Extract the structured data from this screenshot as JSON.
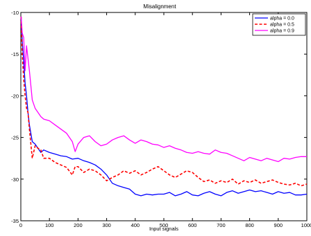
{
  "chart_data": {
    "type": "line",
    "title": "Misalignment",
    "xlabel": "Input signals",
    "ylabel": "",
    "xlim": [
      0,
      1000
    ],
    "ylim": [
      -35,
      -10
    ],
    "xticks": [
      0,
      100,
      200,
      300,
      400,
      500,
      600,
      700,
      800,
      900,
      1000
    ],
    "xtick_labels": [
      "0",
      "100",
      "200",
      "300",
      "400",
      "500",
      "600",
      "700",
      "800",
      "900",
      "1000"
    ],
    "yticks": [
      -10,
      -15,
      -20,
      -25,
      -30,
      -35
    ],
    "ytick_labels": [
      "-10",
      "-15",
      "-20",
      "-25",
      "-30",
      "-35"
    ],
    "grid": false,
    "legend_position": "top-right",
    "series": [
      {
        "name": "alpha = 0.0",
        "color": "#0000ff",
        "dash": "solid",
        "x": [
          1,
          5,
          10,
          15,
          20,
          25,
          30,
          40,
          50,
          60,
          70,
          80,
          100,
          120,
          140,
          160,
          180,
          200,
          220,
          240,
          260,
          280,
          300,
          320,
          340,
          360,
          380,
          400,
          420,
          440,
          460,
          480,
          500,
          520,
          540,
          560,
          580,
          600,
          620,
          640,
          660,
          680,
          700,
          720,
          740,
          760,
          780,
          800,
          820,
          840,
          860,
          880,
          900,
          920,
          940,
          960,
          980,
          1000
        ],
        "values": [
          -10.5,
          -13.5,
          -15.8,
          -18.5,
          -20.0,
          -22.0,
          -23.5,
          -25.5,
          -25.8,
          -26.3,
          -26.8,
          -26.5,
          -26.8,
          -27.0,
          -27.2,
          -27.3,
          -27.6,
          -27.5,
          -27.8,
          -28.0,
          -28.3,
          -28.8,
          -29.5,
          -30.5,
          -30.8,
          -31.0,
          -31.2,
          -31.8,
          -32.0,
          -31.8,
          -31.9,
          -31.8,
          -31.8,
          -31.6,
          -32.0,
          -31.8,
          -31.5,
          -31.9,
          -32.0,
          -31.7,
          -31.5,
          -31.8,
          -32.0,
          -31.6,
          -31.4,
          -31.7,
          -31.5,
          -31.3,
          -31.5,
          -31.4,
          -31.6,
          -31.8,
          -31.5,
          -31.7,
          -31.6,
          -31.9,
          -31.9,
          -31.8
        ]
      },
      {
        "name": "alpha = 0.5",
        "color": "#ff0000",
        "dash": "dashed",
        "x": [
          1,
          5,
          10,
          15,
          20,
          25,
          30,
          40,
          50,
          60,
          70,
          80,
          100,
          120,
          140,
          160,
          180,
          190,
          200,
          220,
          240,
          260,
          280,
          300,
          320,
          340,
          360,
          380,
          400,
          420,
          440,
          460,
          480,
          500,
          520,
          540,
          560,
          580,
          600,
          620,
          640,
          660,
          680,
          700,
          720,
          740,
          760,
          780,
          800,
          820,
          840,
          860,
          880,
          900,
          920,
          940,
          960,
          980,
          1000
        ],
        "values": [
          -10.5,
          -15.0,
          -18.0,
          -20.0,
          -21.5,
          -22.0,
          -24.0,
          -27.5,
          -26.0,
          -26.3,
          -26.5,
          -27.5,
          -27.5,
          -28.0,
          -28.3,
          -28.6,
          -29.5,
          -28.5,
          -28.5,
          -29.2,
          -28.8,
          -29.0,
          -29.5,
          -30.2,
          -29.8,
          -29.5,
          -29.0,
          -29.3,
          -29.0,
          -29.5,
          -29.2,
          -28.8,
          -28.5,
          -29.0,
          -29.5,
          -29.8,
          -29.4,
          -29.0,
          -29.2,
          -29.8,
          -30.3,
          -30.1,
          -30.5,
          -30.2,
          -30.4,
          -30.0,
          -30.6,
          -30.2,
          -30.4,
          -30.1,
          -30.5,
          -30.3,
          -30.1,
          -30.4,
          -30.6,
          -30.7,
          -30.5,
          -30.8,
          -30.6
        ]
      },
      {
        "name": "alpha = 0.9",
        "color": "#ff00ff",
        "dash": "solid",
        "x": [
          1,
          5,
          10,
          15,
          20,
          25,
          30,
          40,
          50,
          60,
          70,
          80,
          100,
          120,
          140,
          160,
          170,
          180,
          190,
          200,
          220,
          240,
          260,
          280,
          300,
          320,
          340,
          360,
          380,
          400,
          420,
          440,
          460,
          480,
          500,
          520,
          540,
          560,
          580,
          600,
          620,
          640,
          660,
          680,
          700,
          720,
          740,
          760,
          780,
          800,
          820,
          840,
          860,
          880,
          900,
          920,
          940,
          960,
          980,
          1000
        ],
        "values": [
          -10.5,
          -12.5,
          -13.0,
          -17.0,
          -14.0,
          -15.5,
          -17.0,
          -20.5,
          -21.5,
          -22.0,
          -22.5,
          -22.8,
          -23.0,
          -23.5,
          -24.0,
          -24.5,
          -25.0,
          -25.5,
          -26.7,
          -25.8,
          -25.0,
          -24.8,
          -25.5,
          -26.0,
          -25.8,
          -25.3,
          -25.0,
          -24.8,
          -25.3,
          -25.7,
          -25.3,
          -25.5,
          -25.8,
          -25.9,
          -26.2,
          -26.0,
          -26.3,
          -26.5,
          -26.8,
          -26.9,
          -26.7,
          -26.9,
          -27.0,
          -26.5,
          -26.8,
          -26.9,
          -27.2,
          -27.5,
          -27.8,
          -27.4,
          -27.6,
          -27.8,
          -27.5,
          -27.7,
          -27.9,
          -27.5,
          -27.6,
          -27.4,
          -27.3,
          -27.3
        ]
      }
    ]
  }
}
